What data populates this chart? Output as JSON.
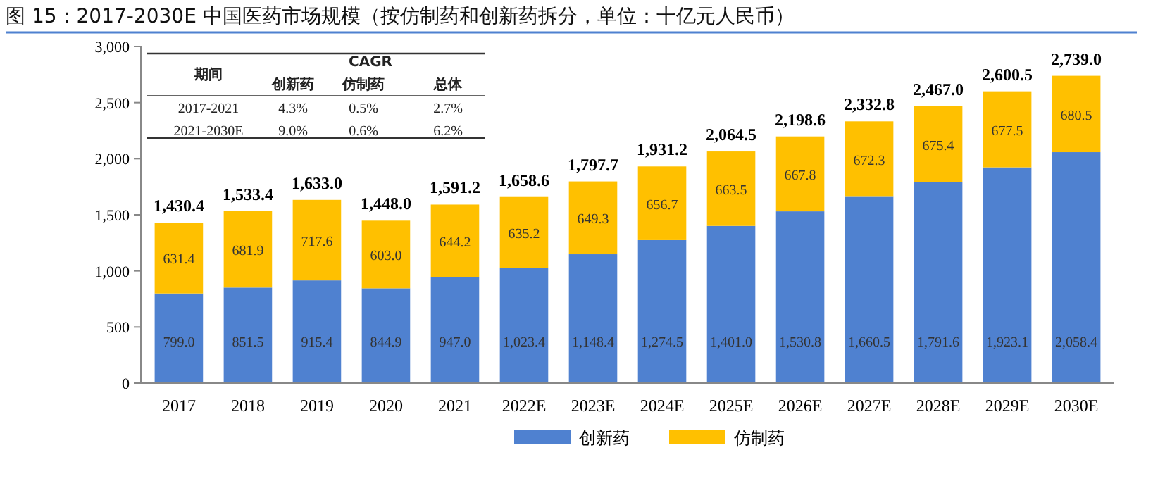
{
  "chart_data": {
    "type": "bar",
    "title": "图 15：2017-2030E 中国医药市场规模（按仿制药和创新药拆分，单位：十亿元人民币）",
    "categories": [
      "2017",
      "2018",
      "2019",
      "2020",
      "2021",
      "2022E",
      "2023E",
      "2024E",
      "2025E",
      "2026E",
      "2027E",
      "2028E",
      "2029E",
      "2030E"
    ],
    "series": [
      {
        "name": "创新药",
        "color": "#4f81d0",
        "values": [
          799.0,
          851.5,
          915.4,
          844.9,
          947.0,
          1023.4,
          1148.4,
          1274.5,
          1401.0,
          1530.8,
          1660.5,
          1791.6,
          1923.1,
          2058.4
        ],
        "value_labels": [
          "799.0",
          "851.5",
          "915.4",
          "844.9",
          "947.0",
          "1,023.4",
          "1,148.4",
          "1,274.5",
          "1,401.0",
          "1,530.8",
          "1,660.5",
          "1,791.6",
          "1,923.1",
          "2,058.4"
        ]
      },
      {
        "name": "仿制药",
        "color": "#ffc000",
        "values": [
          631.4,
          681.9,
          717.6,
          603.0,
          644.2,
          635.2,
          649.3,
          656.7,
          663.5,
          667.8,
          672.3,
          675.4,
          677.5,
          680.5
        ],
        "value_labels": [
          "631.4",
          "681.9",
          "717.6",
          "603.0",
          "644.2",
          "635.2",
          "649.3",
          "656.7",
          "663.5",
          "667.8",
          "672.3",
          "675.4",
          "677.5",
          "680.5"
        ]
      }
    ],
    "stacked": true,
    "totals": [
      "1,430.4",
      "1,533.4",
      "1,633.0",
      "1,448.0",
      "1,591.2",
      "1,658.6",
      "1,797.7",
      "1,931.2",
      "2,064.5",
      "2,198.6",
      "2,332.8",
      "2,467.0",
      "2,600.5",
      "2,739.0"
    ],
    "ylim": [
      0,
      3000
    ],
    "yticks": [
      {
        "value": 0,
        "label": "0"
      },
      {
        "value": 500,
        "label": "500"
      },
      {
        "value": 1000,
        "label": "1,000"
      },
      {
        "value": 1500,
        "label": "1,500"
      },
      {
        "value": 2000,
        "label": "2,000"
      },
      {
        "value": 2500,
        "label": "2,500"
      },
      {
        "value": 3000,
        "label": "3,000"
      }
    ],
    "grid": false,
    "legend": "bottom",
    "annotations": [
      "期间",
      "CAGR",
      "创新药",
      "仿制药",
      "总体",
      "2017-2021",
      "4.3%",
      "0.5%",
      "2.7%",
      "2021-2030E",
      "9.0%",
      "0.6%",
      "6.2%"
    ]
  }
}
